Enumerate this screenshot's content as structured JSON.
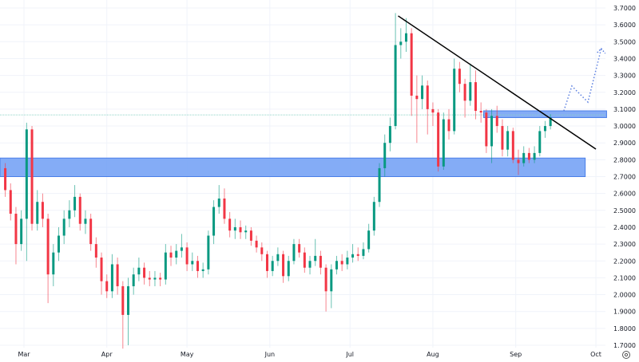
{
  "chart_data": {
    "type": "candlestick",
    "title": "",
    "xlabel": "",
    "ylabel": "",
    "ylim": [
      1.7,
      3.7
    ],
    "y_ticks": [
      "3.7000",
      "3.6000",
      "3.5000",
      "3.4000",
      "3.3000",
      "3.2000",
      "3.1000",
      "3.0000",
      "2.9000",
      "2.8000",
      "2.7000",
      "2.6000",
      "2.5000",
      "2.4000",
      "2.3000",
      "2.2000",
      "2.1000",
      "2.0000",
      "1.9000",
      "1.8000",
      "1.7000"
    ],
    "x_ticks": [
      {
        "label": "Mar",
        "date": "2024-03-01"
      },
      {
        "label": "Apr",
        "date": "2024-04-01"
      },
      {
        "label": "May",
        "date": "2024-05-01"
      },
      {
        "label": "Jun",
        "date": "2024-06-01"
      },
      {
        "label": "Jul",
        "date": "2024-07-01"
      },
      {
        "label": "Aug",
        "date": "2024-08-01"
      },
      {
        "label": "Sep",
        "date": "2024-09-01"
      },
      {
        "label": "Oct",
        "date": "2024-10-01"
      }
    ],
    "grid": true,
    "colors": {
      "up": "#089981",
      "down": "#f23645",
      "zone": "#6e9ef5",
      "zone_border": "#4a7fe8",
      "trendline": "#000000",
      "projection": "#5b7fe0",
      "level_line": "#8fd3c6",
      "grid": "#f0f3fa"
    },
    "candle_fields": [
      "date",
      "open",
      "high",
      "low",
      "close"
    ],
    "candles": [
      [
        "2024-02-23",
        2.75,
        2.78,
        2.58,
        2.62
      ],
      [
        "2024-02-25",
        2.62,
        2.66,
        2.44,
        2.48
      ],
      [
        "2024-02-27",
        2.48,
        2.52,
        2.18,
        2.3
      ],
      [
        "2024-02-29",
        2.3,
        2.5,
        2.26,
        2.45
      ],
      [
        "2024-03-02",
        2.45,
        3.02,
        2.2,
        2.98
      ],
      [
        "2024-03-04",
        2.98,
        3.0,
        2.38,
        2.42
      ],
      [
        "2024-03-06",
        2.42,
        2.62,
        2.38,
        2.55
      ],
      [
        "2024-03-08",
        2.55,
        2.6,
        2.4,
        2.45
      ],
      [
        "2024-03-10",
        2.45,
        2.48,
        1.95,
        2.12
      ],
      [
        "2024-03-12",
        2.12,
        2.3,
        2.05,
        2.25
      ],
      [
        "2024-03-14",
        2.25,
        2.4,
        2.2,
        2.35
      ],
      [
        "2024-03-16",
        2.35,
        2.5,
        2.3,
        2.45
      ],
      [
        "2024-03-18",
        2.45,
        2.56,
        2.4,
        2.5
      ],
      [
        "2024-03-20",
        2.5,
        2.65,
        2.46,
        2.58
      ],
      [
        "2024-03-22",
        2.58,
        2.6,
        2.38,
        2.42
      ],
      [
        "2024-03-24",
        2.42,
        2.5,
        2.36,
        2.45
      ],
      [
        "2024-03-26",
        2.45,
        2.48,
        2.26,
        2.3
      ],
      [
        "2024-03-28",
        2.3,
        2.34,
        2.16,
        2.22
      ],
      [
        "2024-03-30",
        2.22,
        2.25,
        2.0,
        2.08
      ],
      [
        "2024-04-01",
        2.08,
        2.12,
        1.98,
        2.02
      ],
      [
        "2024-04-03",
        2.02,
        2.24,
        1.98,
        2.18
      ],
      [
        "2024-04-05",
        2.18,
        2.22,
        2.0,
        2.05
      ],
      [
        "2024-04-07",
        2.05,
        2.08,
        1.68,
        1.88
      ],
      [
        "2024-04-09",
        1.88,
        2.1,
        1.7,
        2.05
      ],
      [
        "2024-04-11",
        2.05,
        2.16,
        2.0,
        2.12
      ],
      [
        "2024-04-13",
        2.12,
        2.22,
        2.08,
        2.16
      ],
      [
        "2024-04-15",
        2.16,
        2.19,
        2.06,
        2.1
      ],
      [
        "2024-04-17",
        2.1,
        2.14,
        2.05,
        2.09
      ],
      [
        "2024-04-19",
        2.09,
        2.14,
        2.05,
        2.1
      ],
      [
        "2024-04-21",
        2.1,
        2.13,
        2.05,
        2.09
      ],
      [
        "2024-04-23",
        2.09,
        2.3,
        2.06,
        2.25
      ],
      [
        "2024-04-25",
        2.25,
        2.29,
        2.17,
        2.22
      ],
      [
        "2024-04-27",
        2.22,
        2.3,
        2.18,
        2.26
      ],
      [
        "2024-04-29",
        2.26,
        2.36,
        2.22,
        2.28
      ],
      [
        "2024-05-01",
        2.28,
        2.31,
        2.14,
        2.18
      ],
      [
        "2024-05-03",
        2.18,
        2.25,
        2.14,
        2.2
      ],
      [
        "2024-05-05",
        2.2,
        2.23,
        2.1,
        2.14
      ],
      [
        "2024-05-07",
        2.14,
        2.19,
        2.1,
        2.15
      ],
      [
        "2024-05-09",
        2.15,
        2.38,
        2.12,
        2.35
      ],
      [
        "2024-05-11",
        2.35,
        2.56,
        2.3,
        2.52
      ],
      [
        "2024-05-13",
        2.52,
        2.65,
        2.48,
        2.57
      ],
      [
        "2024-05-15",
        2.57,
        2.63,
        2.42,
        2.45
      ],
      [
        "2024-05-17",
        2.45,
        2.49,
        2.34,
        2.38
      ],
      [
        "2024-05-19",
        2.38,
        2.45,
        2.33,
        2.4
      ],
      [
        "2024-05-21",
        2.4,
        2.44,
        2.33,
        2.37
      ],
      [
        "2024-05-23",
        2.37,
        2.41,
        2.33,
        2.38
      ],
      [
        "2024-05-25",
        2.38,
        2.4,
        2.29,
        2.32
      ],
      [
        "2024-05-27",
        2.32,
        2.35,
        2.25,
        2.28
      ],
      [
        "2024-05-29",
        2.28,
        2.31,
        2.2,
        2.24
      ],
      [
        "2024-05-31",
        2.24,
        2.26,
        2.1,
        2.14
      ],
      [
        "2024-06-02",
        2.14,
        2.23,
        2.11,
        2.2
      ],
      [
        "2024-06-04",
        2.2,
        2.28,
        2.17,
        2.24
      ],
      [
        "2024-06-06",
        2.24,
        2.26,
        2.07,
        2.11
      ],
      [
        "2024-06-08",
        2.11,
        2.23,
        2.08,
        2.2
      ],
      [
        "2024-06-10",
        2.2,
        2.33,
        2.18,
        2.3
      ],
      [
        "2024-06-12",
        2.3,
        2.33,
        2.22,
        2.25
      ],
      [
        "2024-06-14",
        2.25,
        2.28,
        2.13,
        2.16
      ],
      [
        "2024-06-16",
        2.16,
        2.23,
        2.12,
        2.2
      ],
      [
        "2024-06-18",
        2.2,
        2.33,
        2.17,
        2.23
      ],
      [
        "2024-06-20",
        2.23,
        2.26,
        2.12,
        2.16
      ],
      [
        "2024-06-22",
        2.16,
        2.18,
        1.9,
        2.02
      ],
      [
        "2024-06-24",
        2.02,
        2.18,
        1.92,
        2.15
      ],
      [
        "2024-06-26",
        2.15,
        2.23,
        2.12,
        2.2
      ],
      [
        "2024-06-28",
        2.2,
        2.24,
        2.14,
        2.18
      ],
      [
        "2024-06-30",
        2.18,
        2.26,
        2.15,
        2.22
      ],
      [
        "2024-07-02",
        2.22,
        2.3,
        2.19,
        2.24
      ],
      [
        "2024-07-04",
        2.24,
        2.28,
        2.2,
        2.23
      ],
      [
        "2024-07-06",
        2.23,
        2.31,
        2.21,
        2.27
      ],
      [
        "2024-07-08",
        2.27,
        2.42,
        2.25,
        2.38
      ],
      [
        "2024-07-10",
        2.38,
        2.58,
        2.35,
        2.55
      ],
      [
        "2024-07-12",
        2.55,
        2.78,
        2.52,
        2.75
      ],
      [
        "2024-07-14",
        2.75,
        2.95,
        2.7,
        2.9
      ],
      [
        "2024-07-16",
        2.9,
        3.05,
        2.85,
        3.0
      ],
      [
        "2024-07-18",
        3.0,
        3.67,
        2.98,
        3.48
      ],
      [
        "2024-07-20",
        3.48,
        3.58,
        3.4,
        3.5
      ],
      [
        "2024-07-22",
        3.5,
        3.64,
        3.44,
        3.55
      ],
      [
        "2024-07-24",
        3.55,
        3.58,
        3.06,
        3.18
      ],
      [
        "2024-07-26",
        3.18,
        3.3,
        2.9,
        3.16
      ],
      [
        "2024-07-28",
        3.16,
        3.3,
        3.1,
        3.24
      ],
      [
        "2024-07-30",
        3.24,
        3.27,
        2.95,
        3.1
      ],
      [
        "2024-08-01",
        3.1,
        3.14,
        3.0,
        3.08
      ],
      [
        "2024-08-03",
        3.08,
        3.1,
        2.73,
        2.76
      ],
      [
        "2024-08-05",
        2.76,
        3.08,
        2.74,
        3.04
      ],
      [
        "2024-08-07",
        3.04,
        3.1,
        2.92,
        2.97
      ],
      [
        "2024-08-09",
        2.97,
        3.4,
        2.95,
        3.34
      ],
      [
        "2024-08-11",
        3.34,
        3.38,
        3.2,
        3.25
      ],
      [
        "2024-08-13",
        3.25,
        3.28,
        3.05,
        3.15
      ],
      [
        "2024-08-15",
        3.15,
        3.37,
        3.12,
        3.26
      ],
      [
        "2024-08-17",
        3.26,
        3.33,
        3.04,
        3.09
      ],
      [
        "2024-08-19",
        3.09,
        3.14,
        3.02,
        3.08
      ],
      [
        "2024-08-21",
        3.08,
        3.1,
        2.84,
        2.88
      ],
      [
        "2024-08-23",
        2.88,
        3.1,
        2.78,
        3.06
      ],
      [
        "2024-08-25",
        3.06,
        3.12,
        2.96,
        3.0
      ],
      [
        "2024-08-27",
        3.0,
        3.04,
        2.82,
        2.86
      ],
      [
        "2024-08-29",
        2.86,
        3.0,
        2.82,
        2.97
      ],
      [
        "2024-08-31",
        2.97,
        2.99,
        2.78,
        2.8
      ],
      [
        "2024-09-02",
        2.8,
        2.86,
        2.71,
        2.78
      ],
      [
        "2024-09-04",
        2.78,
        2.88,
        2.76,
        2.84
      ],
      [
        "2024-09-06",
        2.84,
        2.87,
        2.78,
        2.8
      ],
      [
        "2024-09-08",
        2.8,
        2.88,
        2.78,
        2.84
      ],
      [
        "2024-09-10",
        2.84,
        3.0,
        2.82,
        2.97
      ],
      [
        "2024-09-12",
        2.97,
        3.03,
        2.93,
        3.0
      ],
      [
        "2024-09-14",
        3.0,
        3.07,
        2.98,
        3.05
      ]
    ],
    "annotations": {
      "zones": [
        {
          "from": "2024-02-21",
          "to": "2024-09-27",
          "low": 2.7,
          "high": 2.81
        },
        {
          "from": "2024-08-20",
          "to": "2024-10-05",
          "low": 3.05,
          "high": 3.09
        }
      ],
      "trendline": [
        {
          "date": "2024-07-19",
          "price": 3.653
        },
        {
          "date": "2024-10-01",
          "price": 2.863
        }
      ],
      "level_line": 3.066,
      "projection": [
        {
          "date": "2024-09-19",
          "price": 3.09
        },
        {
          "date": "2024-09-22",
          "price": 3.237
        },
        {
          "date": "2024-09-28",
          "price": 3.142
        },
        {
          "date": "2024-10-03",
          "price": 3.459
        }
      ]
    }
  },
  "controls": {
    "settings_icon": "settings-gear-icon"
  }
}
